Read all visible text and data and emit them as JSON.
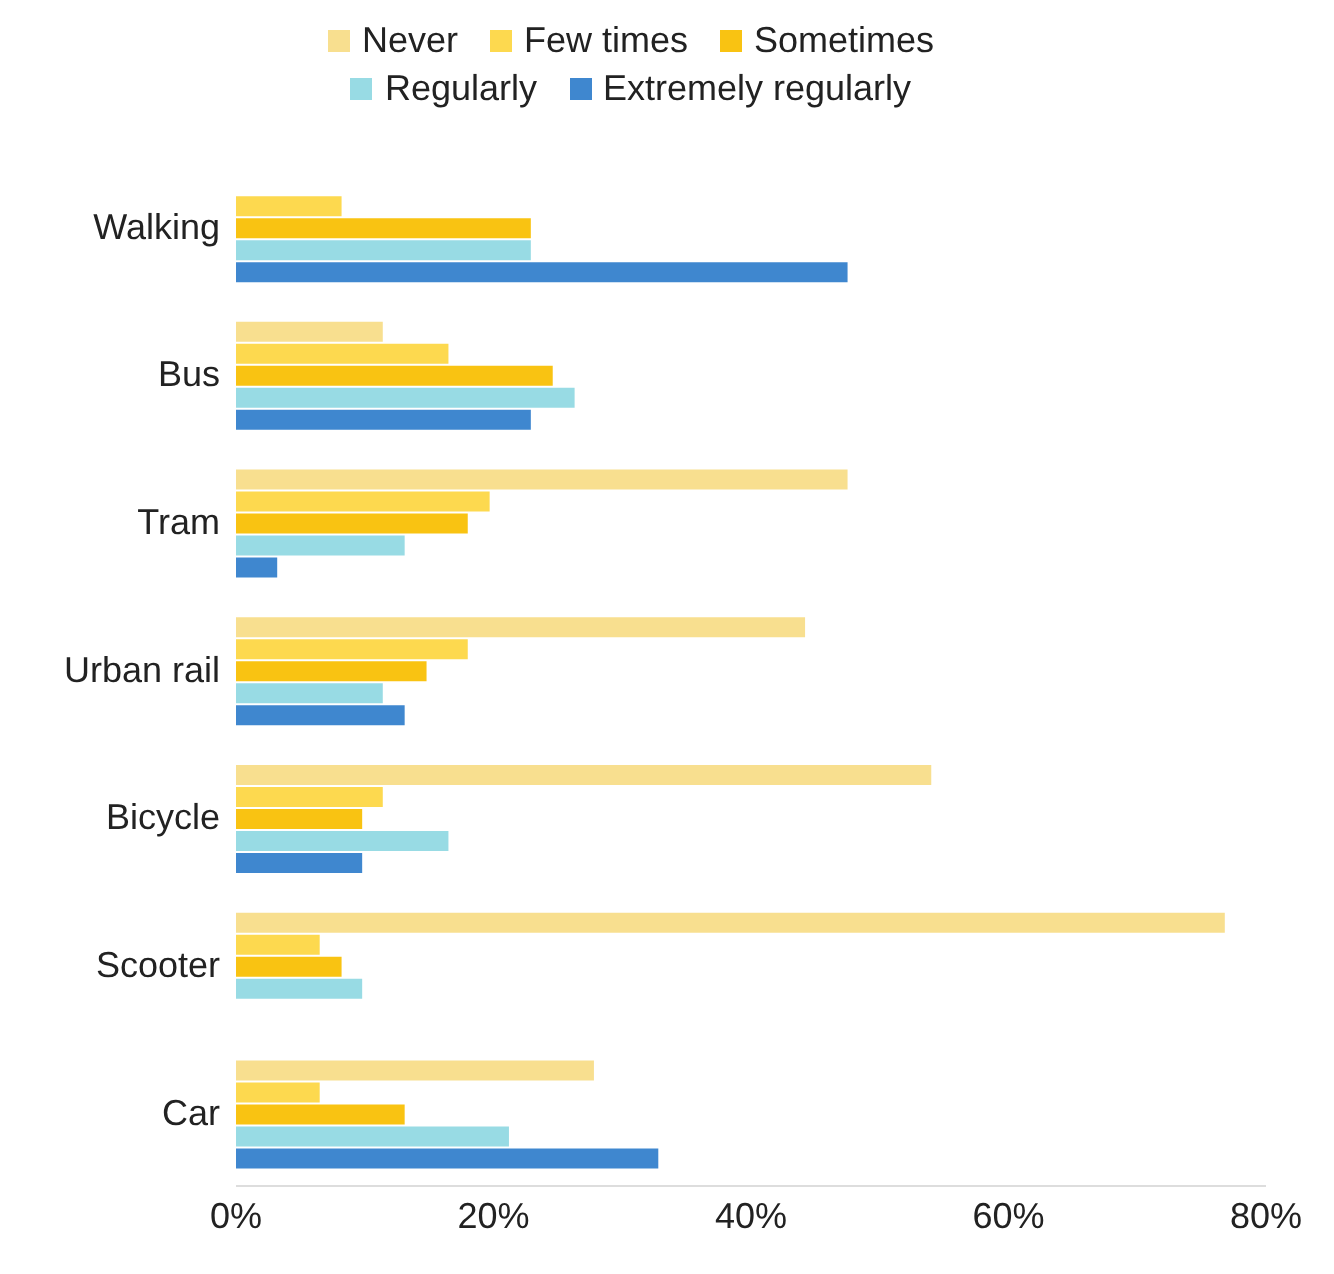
{
  "chart_data": {
    "type": "bar",
    "orientation": "horizontal",
    "categories": [
      "Walking",
      "Bus",
      "Tram",
      "Urban rail",
      "Bicycle",
      "Scooter",
      "Car"
    ],
    "series": [
      {
        "name": "Never",
        "color": "#f8df8f",
        "values": [
          0,
          11.4,
          47.5,
          44.2,
          54,
          76.8,
          27.8
        ]
      },
      {
        "name": "Few times",
        "color": "#fdd94f",
        "values": [
          8.2,
          16.5,
          19.7,
          18,
          11.4,
          6.5,
          6.5
        ]
      },
      {
        "name": "Sometimes",
        "color": "#f9c312",
        "values": [
          22.9,
          24.6,
          18,
          14.8,
          9.8,
          8.2,
          13.1
        ]
      },
      {
        "name": "Regularly",
        "color": "#98dbe4",
        "values": [
          22.9,
          26.3,
          13.1,
          11.4,
          16.5,
          9.8,
          21.2
        ]
      },
      {
        "name": "Extremely regularly",
        "color": "#3f87cf",
        "values": [
          47.5,
          22.9,
          3.2,
          13.1,
          9.8,
          0,
          32.8
        ]
      }
    ],
    "xlim": [
      0,
      80
    ],
    "xticks": [
      {
        "value": 0,
        "label": "0%"
      },
      {
        "value": 20,
        "label": "20%"
      },
      {
        "value": 40,
        "label": "40%"
      },
      {
        "value": 60,
        "label": "60%"
      },
      {
        "value": 80,
        "label": "80%"
      }
    ],
    "grid": false,
    "legend": "top"
  }
}
